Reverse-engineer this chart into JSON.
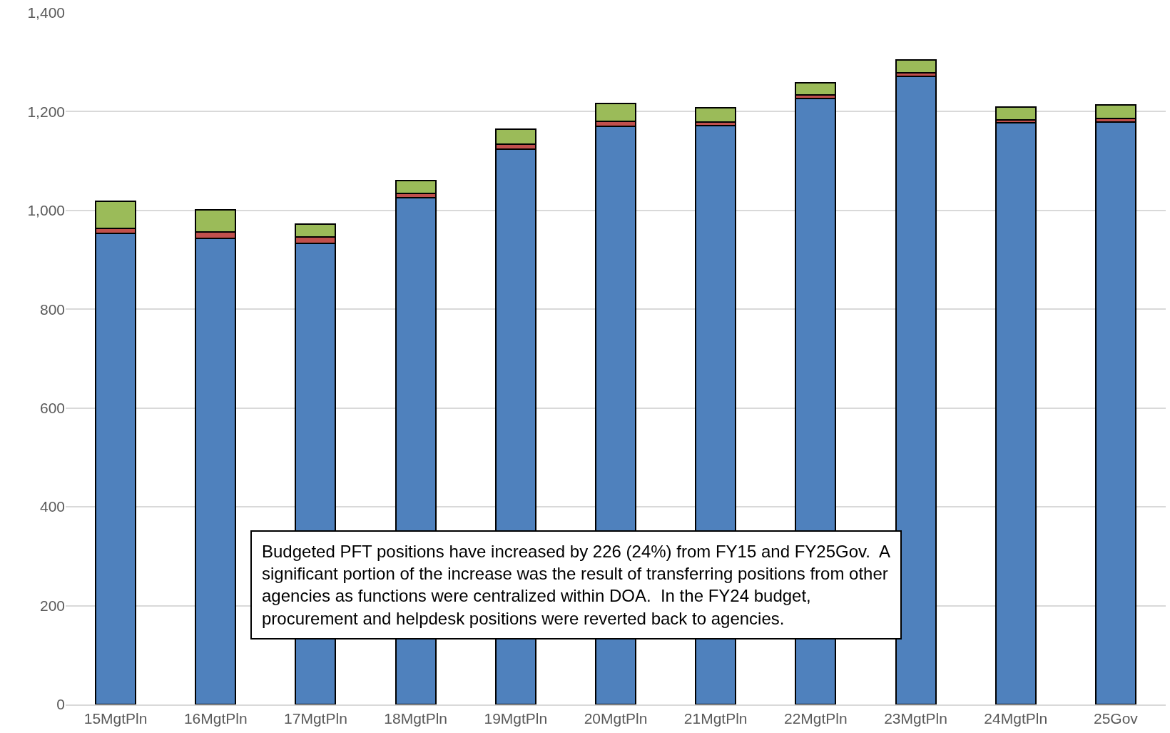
{
  "chart_data": {
    "type": "bar",
    "stacked": true,
    "categories": [
      "15MgtPln",
      "16MgtPln",
      "17MgtPln",
      "18MgtPln",
      "19MgtPln",
      "20MgtPln",
      "21MgtPln",
      "22MgtPln",
      "23MgtPln",
      "24MgtPln",
      "25Gov"
    ],
    "series": [
      {
        "color": "#4f81bd",
        "values": [
          953,
          944,
          934,
          1026,
          1124,
          1170,
          1172,
          1227,
          1272,
          1177,
          1179
        ]
      },
      {
        "color": "#c0504d",
        "values": [
          11,
          12,
          12,
          9,
          10,
          11,
          7,
          7,
          7,
          7,
          7
        ]
      },
      {
        "color": "#9bbb59",
        "values": [
          54,
          45,
          26,
          26,
          31,
          35,
          29,
          25,
          25,
          25,
          27
        ]
      }
    ],
    "ylim": [
      0,
      1400
    ],
    "yticks": [
      0,
      {
        "value": 200,
        "label": "200"
      },
      {
        "value": 400,
        "label": "400"
      },
      {
        "value": 600,
        "label": "600"
      },
      {
        "value": 800,
        "label": "800"
      },
      {
        "value": 1000,
        "label": "1,000"
      },
      {
        "value": 1200,
        "label": "1,200"
      },
      {
        "value": 1400,
        "label": "1,400"
      }
    ],
    "grid": "y",
    "annotations": [
      "Budgeted PFT positions have increased by 226 (24%) from FY15 and FY25Gov.  A\nsignificant portion of the increase was the result of transferring positions from other\nagencies as functions were centralized within DOA.  In the FY24 budget,\nprocurement and helpdesk positions were reverted back to agencies."
    ]
  }
}
